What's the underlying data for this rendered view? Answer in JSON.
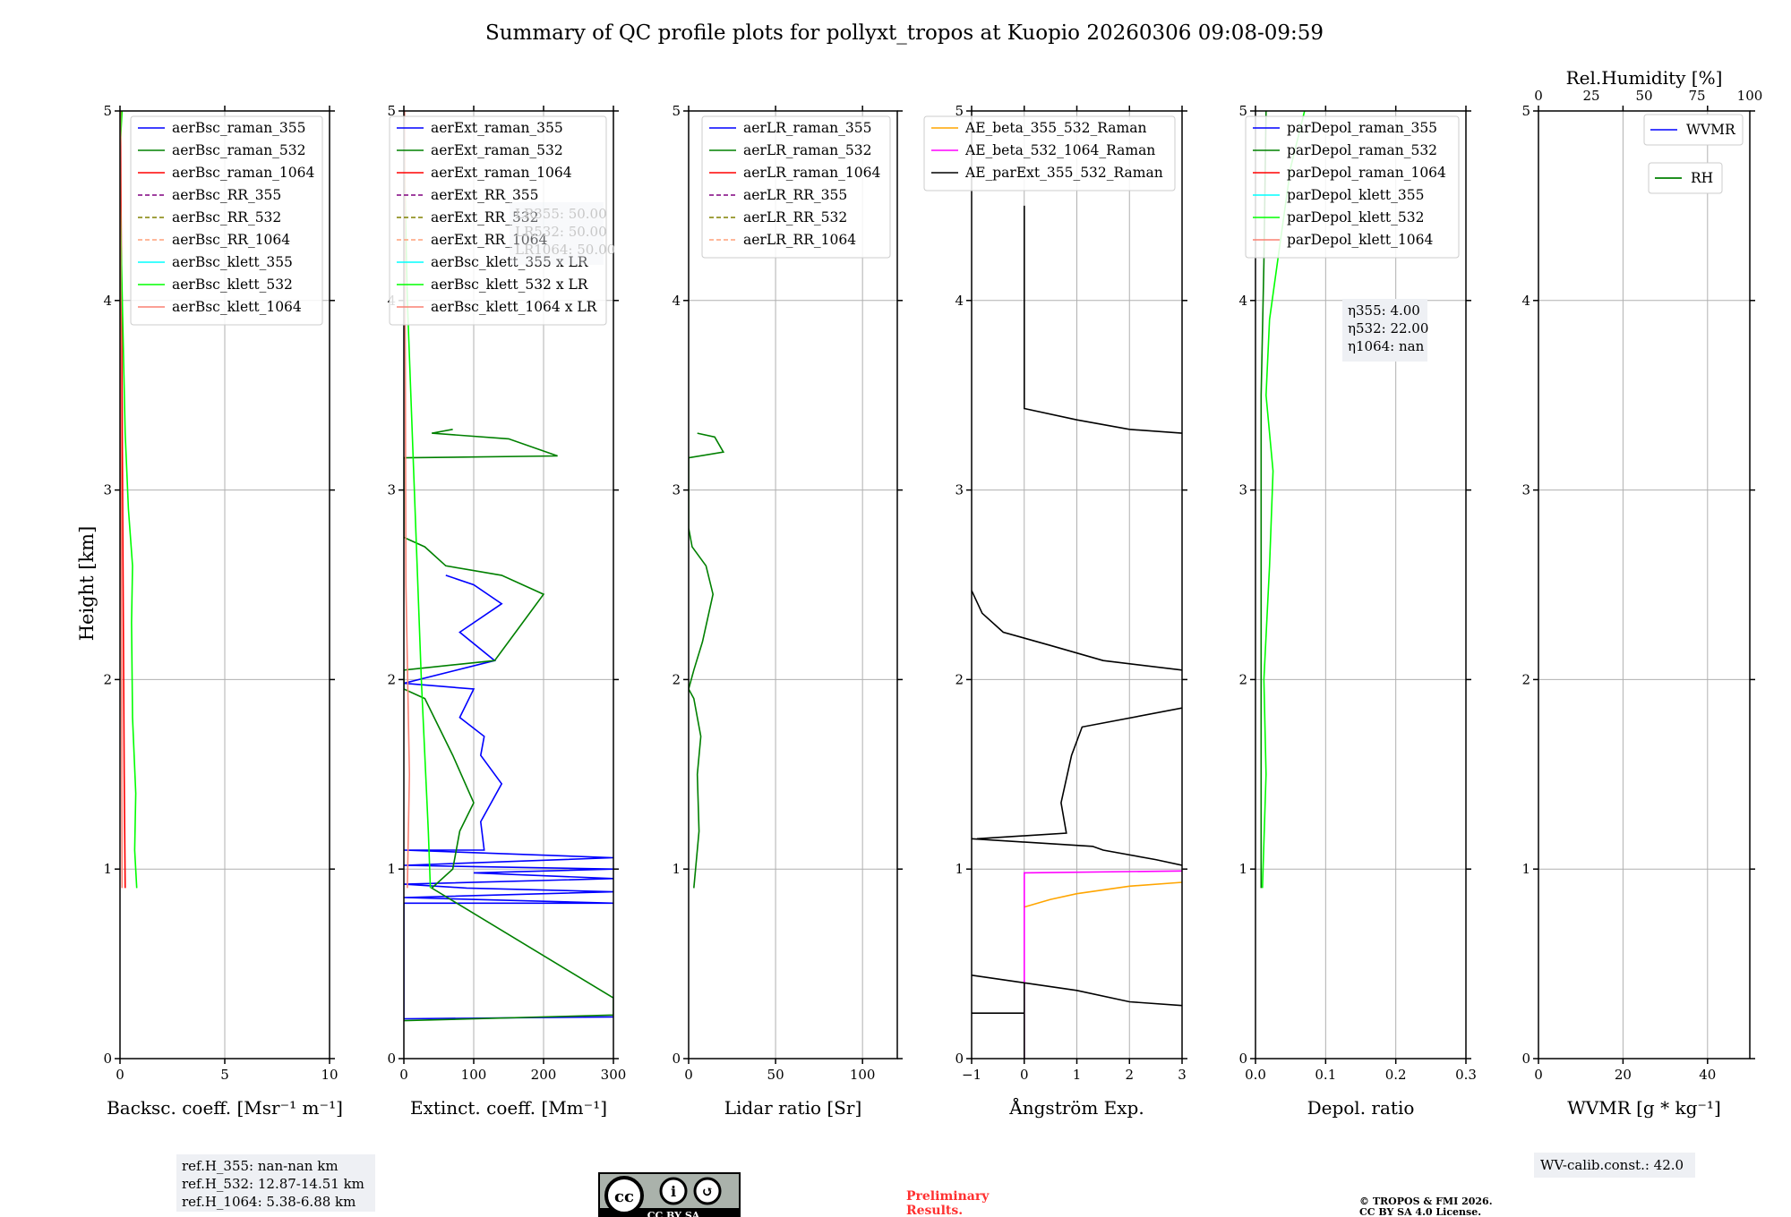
{
  "title": "Summary of QC profile plots for pollyxt_tropos at Kuopio 20260306 09:08-09:59",
  "ylabel": "Height [km]",
  "colors": {
    "blue": "#0000ff",
    "green": "#008000",
    "red": "#ff0000",
    "purple": "#800080",
    "olive": "#808000",
    "lightsalmon": "#ffa07a",
    "cyan": "#00ffff",
    "lime": "#00ff00",
    "salmon": "#fa8072",
    "orange": "#ffa500",
    "magenta": "#ff00ff",
    "black": "#000000"
  },
  "chart_data": [
    {
      "type": "line",
      "xlabel": "Backsc. coeff. [Msr⁻¹ m⁻¹]",
      "xlim": [
        0,
        10
      ],
      "ylim": [
        0,
        5
      ],
      "xticks": [
        "0",
        "5",
        "10"
      ],
      "yticks": [
        "0",
        "1",
        "2",
        "3",
        "4",
        "5"
      ],
      "grid": true,
      "legend": "top-right",
      "series": [
        {
          "name": "aerBsc_raman_355",
          "color": "#0000ff",
          "dash": false,
          "points": []
        },
        {
          "name": "aerBsc_raman_532",
          "color": "#008000",
          "dash": false,
          "points": []
        },
        {
          "name": "aerBsc_raman_1064",
          "color": "#ff0000",
          "dash": false,
          "points": [
            [
              0.25,
              0.9
            ],
            [
              0.2,
              1.5
            ],
            [
              0.15,
              2.5
            ],
            [
              0.1,
              3.5
            ],
            [
              0.05,
              4.5
            ],
            [
              0.03,
              5
            ]
          ]
        },
        {
          "name": "aerBsc_RR_355",
          "color": "#800080",
          "dash": true,
          "points": []
        },
        {
          "name": "aerBsc_RR_532",
          "color": "#808000",
          "dash": true,
          "points": []
        },
        {
          "name": "aerBsc_RR_1064",
          "color": "#ffa07a",
          "dash": true,
          "points": []
        },
        {
          "name": "aerBsc_klett_355",
          "color": "#00ffff",
          "dash": false,
          "points": []
        },
        {
          "name": "aerBsc_klett_532",
          "color": "#00ff00",
          "dash": false,
          "points": [
            [
              0.8,
              0.9
            ],
            [
              0.7,
              1.1
            ],
            [
              0.75,
              1.4
            ],
            [
              0.6,
              1.8
            ],
            [
              0.55,
              2.3
            ],
            [
              0.6,
              2.6
            ],
            [
              0.4,
              2.9
            ],
            [
              0.25,
              3.3
            ],
            [
              0.15,
              3.8
            ],
            [
              0.05,
              4.3
            ],
            [
              0.0,
              4.8
            ],
            [
              0.1,
              5
            ]
          ]
        },
        {
          "name": "aerBsc_klett_1064",
          "color": "#fa8072",
          "dash": false,
          "points": [
            [
              0.1,
              0.9
            ],
            [
              0.05,
              3
            ],
            [
              0.02,
              5
            ]
          ]
        }
      ]
    },
    {
      "type": "line",
      "xlabel": "Extinct. coeff. [Mm⁻¹]",
      "xlim": [
        0,
        300
      ],
      "ylim": [
        0,
        5
      ],
      "xticks": [
        "0",
        "100",
        "200",
        "300"
      ],
      "yticks": [
        "0",
        "1",
        "2",
        "3",
        "4",
        "5"
      ],
      "grid": true,
      "legend": "top-right",
      "annotations": [
        "LR355: 50.00",
        "LR532: 50.00",
        "LR1064: 50.00"
      ],
      "series": [
        {
          "name": "aerExt_raman_355",
          "color": "#0000ff",
          "dash": false,
          "points": [
            [
              0,
              0.21
            ],
            [
              300,
              0.22
            ],
            [
              0,
              0.21
            ],
            [
              0,
              0.82
            ],
            [
              300,
              0.82
            ],
            [
              0,
              0.85
            ],
            [
              300,
              0.88
            ],
            [
              90,
              0.9
            ],
            [
              0,
              0.92
            ],
            [
              300,
              0.95
            ],
            [
              100,
              0.98
            ],
            [
              300,
              1.0
            ],
            [
              0,
              1.02
            ],
            [
              300,
              1.06
            ],
            [
              0,
              1.1
            ],
            [
              115,
              1.1
            ],
            [
              110,
              1.25
            ],
            [
              140,
              1.45
            ],
            [
              110,
              1.6
            ],
            [
              115,
              1.7
            ],
            [
              80,
              1.8
            ],
            [
              100,
              1.95
            ],
            [
              0,
              1.98
            ],
            [
              130,
              2.1
            ],
            [
              80,
              2.25
            ],
            [
              140,
              2.4
            ],
            [
              100,
              2.5
            ],
            [
              60,
              2.55
            ]
          ]
        },
        {
          "name": "aerExt_raman_532",
          "color": "#008000",
          "dash": false,
          "points": [
            [
              0,
              0.2
            ],
            [
              300,
              0.23
            ],
            [
              300,
              0.28
            ],
            [
              300,
              0.32
            ],
            [
              40,
              0.9
            ],
            [
              70,
              1.0
            ],
            [
              80,
              1.2
            ],
            [
              100,
              1.35
            ],
            [
              70,
              1.6
            ],
            [
              50,
              1.75
            ],
            [
              30,
              1.9
            ],
            [
              0,
              1.95
            ],
            [
              0,
              2.05
            ],
            [
              130,
              2.1
            ],
            [
              170,
              2.3
            ],
            [
              200,
              2.45
            ],
            [
              140,
              2.55
            ],
            [
              60,
              2.6
            ],
            [
              30,
              2.7
            ],
            [
              0,
              2.75
            ],
            [
              0,
              3.17
            ],
            [
              220,
              3.18
            ],
            [
              150,
              3.27
            ],
            [
              40,
              3.3
            ],
            [
              70,
              3.32
            ]
          ]
        },
        {
          "name": "aerExt_raman_1064",
          "color": "#ff0000",
          "dash": false,
          "points": []
        },
        {
          "name": "aerExt_RR_355",
          "color": "#800080",
          "dash": true,
          "points": []
        },
        {
          "name": "aerExt_RR_532",
          "color": "#808000",
          "dash": true,
          "points": []
        },
        {
          "name": "aerExt_RR_1064",
          "color": "#ffa07a",
          "dash": true,
          "points": []
        },
        {
          "name": "aerBsc_klett_355 x LR",
          "color": "#00ffff",
          "dash": false,
          "points": []
        },
        {
          "name": "aerBsc_klett_532 x LR",
          "color": "#00ff00",
          "dash": false,
          "points": [
            [
              38,
              0.9
            ],
            [
              35,
              1.2
            ],
            [
              30,
              1.6
            ],
            [
              25,
              2.0
            ],
            [
              20,
              2.5
            ],
            [
              15,
              3.0
            ],
            [
              10,
              3.5
            ],
            [
              5,
              4.0
            ],
            [
              2,
              4.5
            ],
            [
              0,
              5
            ]
          ]
        },
        {
          "name": "aerBsc_klett_1064 x LR",
          "color": "#fa8072",
          "dash": false,
          "points": [
            [
              5,
              0.9
            ],
            [
              8,
              1.5
            ],
            [
              3,
              2.5
            ],
            [
              1,
              5
            ]
          ]
        }
      ]
    },
    {
      "type": "line",
      "xlabel": "Lidar ratio [Sr]",
      "xlim": [
        0,
        120
      ],
      "ylim": [
        0,
        5
      ],
      "xticks": [
        "0",
        "50",
        "100"
      ],
      "yticks": [
        "0",
        "1",
        "2",
        "3",
        "4",
        "5"
      ],
      "grid": true,
      "legend": "top-right",
      "series": [
        {
          "name": "aerLR_raman_355",
          "color": "#0000ff",
          "dash": false,
          "points": []
        },
        {
          "name": "aerLR_raman_532",
          "color": "#008000",
          "dash": false,
          "points": [
            [
              3,
              0.9
            ],
            [
              6,
              1.2
            ],
            [
              5,
              1.5
            ],
            [
              7,
              1.7
            ],
            [
              3,
              1.9
            ],
            [
              0,
              1.95
            ],
            [
              3,
              2.05
            ],
            [
              8,
              2.2
            ],
            [
              14,
              2.45
            ],
            [
              10,
              2.6
            ],
            [
              2,
              2.7
            ],
            [
              0,
              2.8
            ],
            [
              0,
              3.17
            ],
            [
              20,
              3.2
            ],
            [
              15,
              3.28
            ],
            [
              5,
              3.3
            ]
          ]
        },
        {
          "name": "aerLR_raman_1064",
          "color": "#ff0000",
          "dash": false,
          "points": []
        },
        {
          "name": "aerLR_RR_355",
          "color": "#800080",
          "dash": true,
          "points": []
        },
        {
          "name": "aerLR_RR_532",
          "color": "#808000",
          "dash": true,
          "points": []
        },
        {
          "name": "aerLR_RR_1064",
          "color": "#ffa07a",
          "dash": true,
          "points": []
        }
      ]
    },
    {
      "type": "line",
      "xlabel": "Ångström Exp.",
      "xlim": [
        -1,
        3
      ],
      "ylim": [
        0,
        5
      ],
      "xticks": [
        "−1",
        "0",
        "1",
        "2",
        "3"
      ],
      "yticks": [
        "0",
        "1",
        "2",
        "3",
        "4",
        "5"
      ],
      "grid": true,
      "legend": "top-right",
      "series": [
        {
          "name": "AE_beta_355_532_Raman",
          "color": "#ffa500",
          "dash": false,
          "points": [
            [
              0,
              0.8
            ],
            [
              0.5,
              0.84
            ],
            [
              1,
              0.87
            ],
            [
              2,
              0.91
            ],
            [
              3,
              0.93
            ]
          ]
        },
        {
          "name": "AE_beta_532_1064_Raman",
          "color": "#ff00ff",
          "dash": false,
          "points": [
            [
              0,
              0
            ],
            [
              0,
              0.98
            ],
            [
              3,
              0.99
            ]
          ]
        },
        {
          "name": "AE_parExt_355_532_Raman",
          "color": "#000000",
          "dash": false,
          "points": [
            [
              -1,
              0.24
            ],
            [
              0,
              0.24
            ],
            [
              0,
              0
            ],
            [
              0,
              0.4
            ],
            [
              1,
              0.36
            ],
            [
              2,
              0.3
            ],
            [
              3,
              0.28
            ],
            null,
            [
              -1,
              0.44
            ],
            [
              0,
              0.4
            ],
            null,
            [
              -0.9,
              1.16
            ],
            [
              0.8,
              1.19
            ],
            [
              0.7,
              1.35
            ],
            [
              0.9,
              1.6
            ],
            [
              1.1,
              1.75
            ],
            [
              3,
              1.85
            ],
            null,
            [
              -1,
              2.47
            ],
            [
              -0.8,
              2.35
            ],
            [
              -0.4,
              2.25
            ],
            [
              0.5,
              2.18
            ],
            [
              1.5,
              2.1
            ],
            [
              3,
              2.05
            ],
            null,
            [
              0,
              4.5
            ],
            [
              0,
              3.43
            ],
            [
              1,
              3.37
            ],
            [
              2,
              3.32
            ],
            [
              3,
              3.3
            ],
            null,
            [
              -1,
              1.16
            ],
            [
              1.3,
              1.12
            ],
            [
              1.5,
              1.1
            ],
            [
              2.5,
              1.05
            ],
            [
              3,
              1.02
            ]
          ]
        }
      ]
    },
    {
      "type": "line",
      "xlabel": "Depol. ratio",
      "xlim": [
        0,
        0.3
      ],
      "ylim": [
        0,
        5
      ],
      "xticks": [
        "0.0",
        "0.1",
        "0.2",
        "0.3"
      ],
      "yticks": [
        "0",
        "1",
        "2",
        "3",
        "4",
        "5"
      ],
      "grid": true,
      "legend": "top-right",
      "annotations": [
        "η355: 4.00",
        "η532: 22.00",
        "η1064: nan"
      ],
      "series": [
        {
          "name": "parDepol_raman_355",
          "color": "#0000ff",
          "dash": false,
          "points": []
        },
        {
          "name": "parDepol_raman_532",
          "color": "#008000",
          "dash": false,
          "points": [
            [
              0.008,
              0.9
            ],
            [
              0.008,
              3.5
            ],
            [
              0.012,
              4.2
            ],
            [
              0.015,
              5
            ]
          ]
        },
        {
          "name": "parDepol_raman_1064",
          "color": "#ff0000",
          "dash": false,
          "points": []
        },
        {
          "name": "parDepol_klett_355",
          "color": "#00ffff",
          "dash": false,
          "points": []
        },
        {
          "name": "parDepol_klett_532",
          "color": "#00ff00",
          "dash": false,
          "points": [
            [
              0.01,
              0.9
            ],
            [
              0.015,
              1.5
            ],
            [
              0.012,
              2.0
            ],
            [
              0.02,
              2.6
            ],
            [
              0.025,
              3.1
            ],
            [
              0.015,
              3.5
            ],
            [
              0.02,
              3.9
            ],
            [
              0.035,
              4.3
            ],
            [
              0.05,
              4.7
            ],
            [
              0.07,
              5
            ]
          ]
        },
        {
          "name": "parDepol_klett_1064",
          "color": "#fa8072",
          "dash": false,
          "points": []
        }
      ]
    },
    {
      "type": "line",
      "xlabel": "WVMR [g * kg⁻¹]",
      "xlim": [
        0,
        50
      ],
      "ylim": [
        0,
        5
      ],
      "xticks": [
        "0",
        "20",
        "40"
      ],
      "yticks": [
        "0",
        "1",
        "2",
        "3",
        "4",
        "5"
      ],
      "grid": true,
      "legend": "top-right",
      "top_xlabel": "Rel.Humidity [%]",
      "top_xticks": [
        "0",
        "25",
        "50",
        "75",
        "100"
      ],
      "series": [
        {
          "name": "WVMR",
          "color": "#0000ff",
          "dash": false,
          "points": []
        },
        {
          "name": "RH",
          "color": "#008000",
          "dash": false,
          "points": []
        }
      ]
    }
  ],
  "footer": {
    "refh": [
      "ref.H_355: nan-nan km",
      "ref.H_532: 12.87-14.51 km",
      "ref.H_1064: 5.38-6.88 km"
    ],
    "license_badge": "CC BY SA",
    "preliminary": [
      "Preliminary",
      "Results."
    ],
    "copyright": [
      "© TROPOS & FMI 2026.",
      "CC BY SA 4.0 License."
    ],
    "wv_calib": "WV-calib.const.: 42.0"
  }
}
